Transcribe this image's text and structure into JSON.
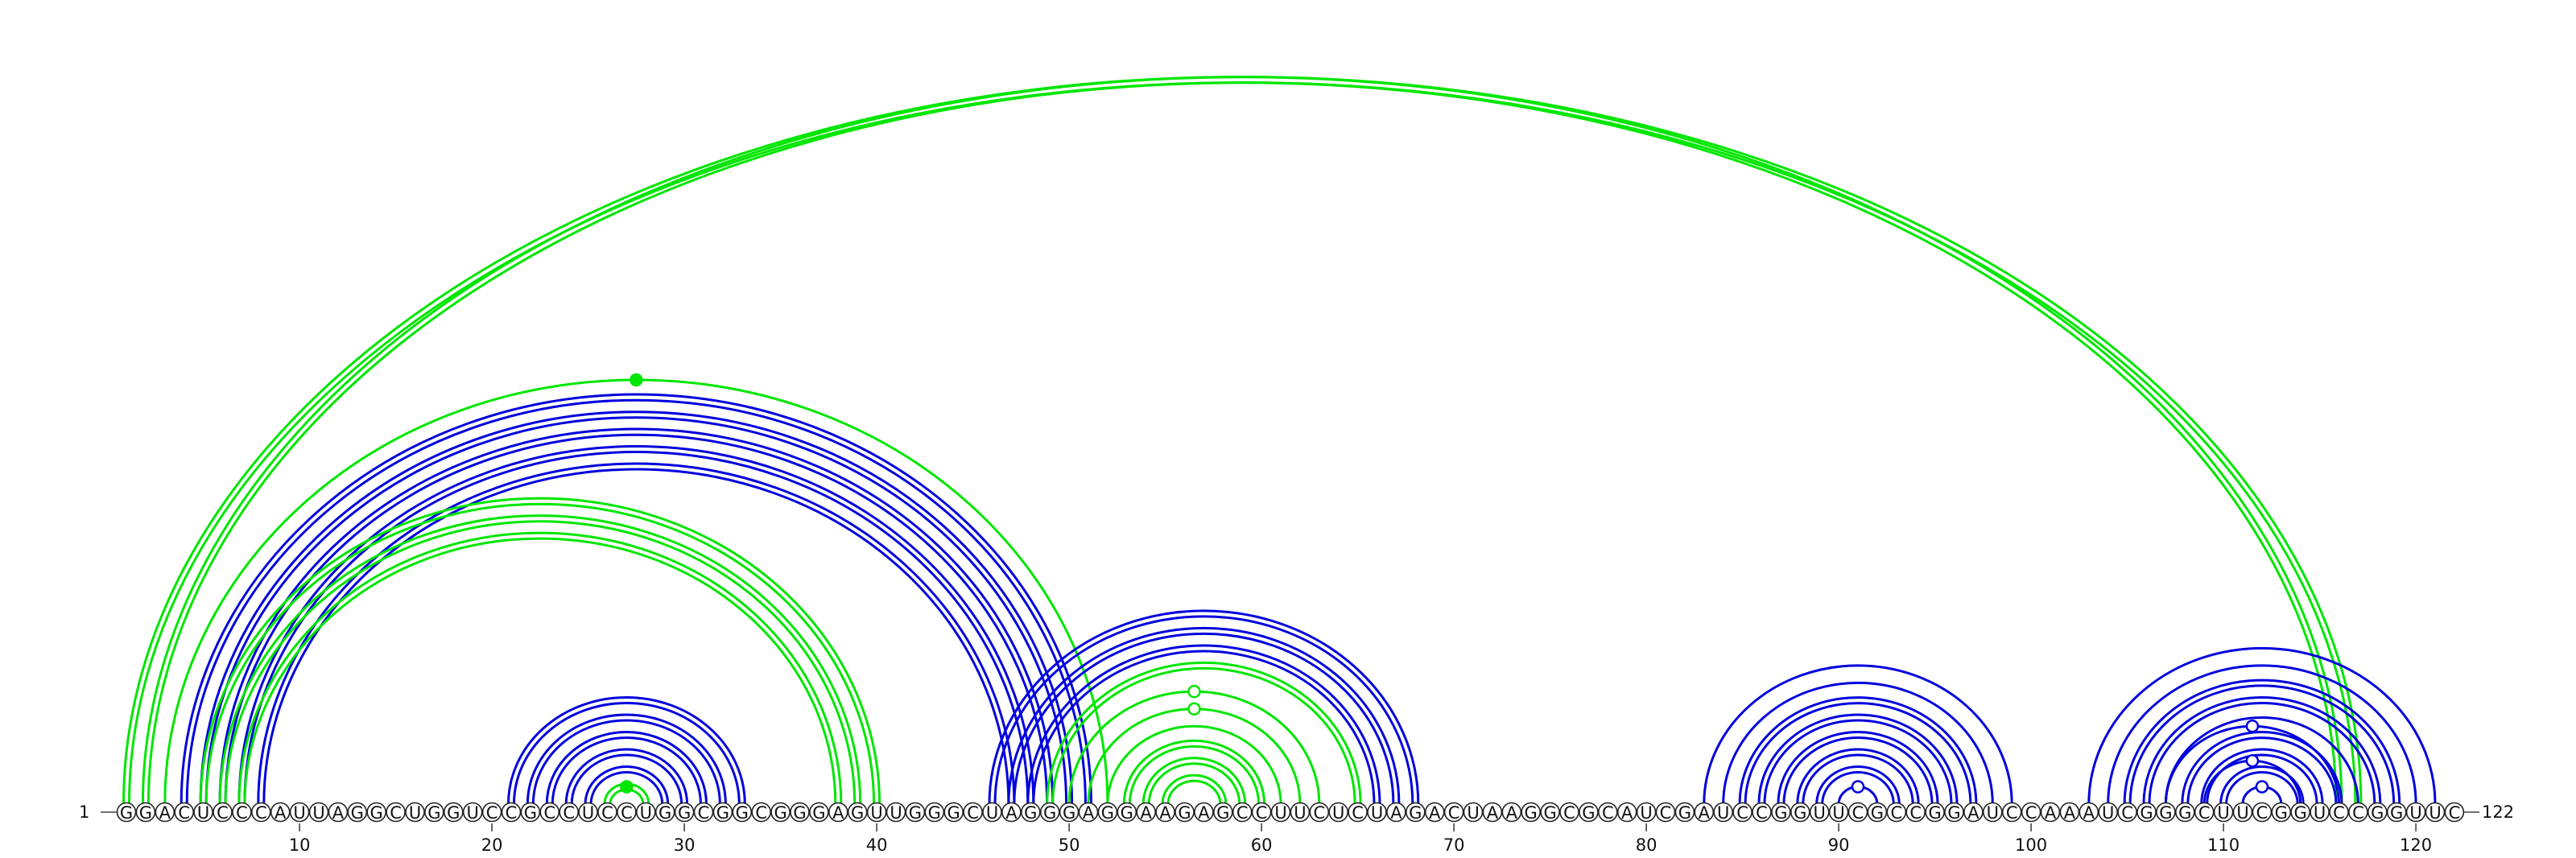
{
  "diagram": {
    "sequence": "GGACUCCCAUUAGGCUGGUCCGCCUCCUGGCGGCGGGAGUUGGGCUAGGGAGGAAGAGCCUUCUCUAGACUAAGGCGCAUCGAUCCGGUUCGCCGGAUCCAAAUCGGGCUUCGGUCCGGUUC",
    "start_index": 1,
    "end_index": 122,
    "start_label": "1",
    "end_label": "122",
    "tick_labels": [
      "10",
      "20",
      "30",
      "40",
      "50",
      "60",
      "70",
      "80",
      "90",
      "100",
      "110",
      "120"
    ],
    "colors": {
      "blue": "#0000dd",
      "green": "#00e600"
    },
    "arcs": [
      {
        "i": 1,
        "j": 117,
        "color": "green",
        "double": true
      },
      {
        "i": 2,
        "j": 116,
        "color": "green",
        "double": true
      },
      {
        "i": 3,
        "j": 52,
        "color": "green",
        "double": false,
        "marker": "filled"
      },
      {
        "i": 4,
        "j": 51,
        "color": "blue",
        "double": true
      },
      {
        "i": 5,
        "j": 50,
        "color": "blue",
        "double": true
      },
      {
        "i": 6,
        "j": 49,
        "color": "blue",
        "double": true
      },
      {
        "i": 7,
        "j": 48,
        "color": "blue",
        "double": true
      },
      {
        "i": 8,
        "j": 47,
        "color": "blue",
        "double": true
      },
      {
        "i": 5,
        "j": 40,
        "color": "green",
        "double": true
      },
      {
        "i": 6,
        "j": 39,
        "color": "green",
        "double": true
      },
      {
        "i": 7,
        "j": 38,
        "color": "green",
        "double": true
      },
      {
        "i": 21,
        "j": 33,
        "color": "blue",
        "double": true
      },
      {
        "i": 22,
        "j": 32,
        "color": "blue",
        "double": true
      },
      {
        "i": 23,
        "j": 31,
        "color": "blue",
        "double": true
      },
      {
        "i": 24,
        "j": 30,
        "color": "blue",
        "double": true
      },
      {
        "i": 25,
        "j": 29,
        "color": "blue",
        "double": true
      },
      {
        "i": 26,
        "j": 28,
        "color": "green",
        "double": true,
        "marker": "filled"
      },
      {
        "i": 46,
        "j": 68,
        "color": "blue",
        "double": true
      },
      {
        "i": 47,
        "j": 67,
        "color": "blue",
        "double": true
      },
      {
        "i": 48,
        "j": 66,
        "color": "blue",
        "double": true
      },
      {
        "i": 49,
        "j": 65,
        "color": "green",
        "double": true
      },
      {
        "i": 50,
        "j": 63,
        "color": "green",
        "double": false,
        "marker": "hollow"
      },
      {
        "i": 51,
        "j": 62,
        "color": "green",
        "double": false,
        "marker": "hollow"
      },
      {
        "i": 52,
        "j": 61,
        "color": "green",
        "double": false
      },
      {
        "i": 53,
        "j": 60,
        "color": "green",
        "double": true
      },
      {
        "i": 54,
        "j": 59,
        "color": "green",
        "double": true
      },
      {
        "i": 55,
        "j": 58,
        "color": "green",
        "double": true
      },
      {
        "i": 83,
        "j": 99,
        "color": "blue",
        "double": false
      },
      {
        "i": 84,
        "j": 98,
        "color": "blue",
        "double": false
      },
      {
        "i": 85,
        "j": 97,
        "color": "blue",
        "double": true
      },
      {
        "i": 86,
        "j": 96,
        "color": "blue",
        "double": true
      },
      {
        "i": 87,
        "j": 95,
        "color": "blue",
        "double": true
      },
      {
        "i": 88,
        "j": 94,
        "color": "blue",
        "double": true
      },
      {
        "i": 89,
        "j": 93,
        "color": "blue",
        "double": true
      },
      {
        "i": 90,
        "j": 92,
        "color": "blue",
        "double": false,
        "marker": "hollow"
      },
      {
        "i": 103,
        "j": 121,
        "color": "blue",
        "double": false
      },
      {
        "i": 104,
        "j": 120,
        "color": "blue",
        "double": false
      },
      {
        "i": 105,
        "j": 119,
        "color": "blue",
        "double": true
      },
      {
        "i": 106,
        "j": 118,
        "color": "blue",
        "double": true
      },
      {
        "i": 107,
        "j": 117,
        "color": "blue",
        "double": false
      },
      {
        "i": 108,
        "j": 116,
        "color": "blue",
        "double": true
      },
      {
        "i": 109,
        "j": 115,
        "color": "blue",
        "double": true
      },
      {
        "i": 110,
        "j": 114,
        "color": "blue",
        "double": true
      },
      {
        "i": 111,
        "j": 113,
        "color": "blue",
        "double": false,
        "marker": "hollow"
      },
      {
        "i": 109,
        "j": 114,
        "color": "blue",
        "double": false,
        "marker": "hollow"
      },
      {
        "i": 107,
        "j": 116,
        "color": "blue",
        "double": false,
        "marker": "hollow"
      }
    ]
  }
}
